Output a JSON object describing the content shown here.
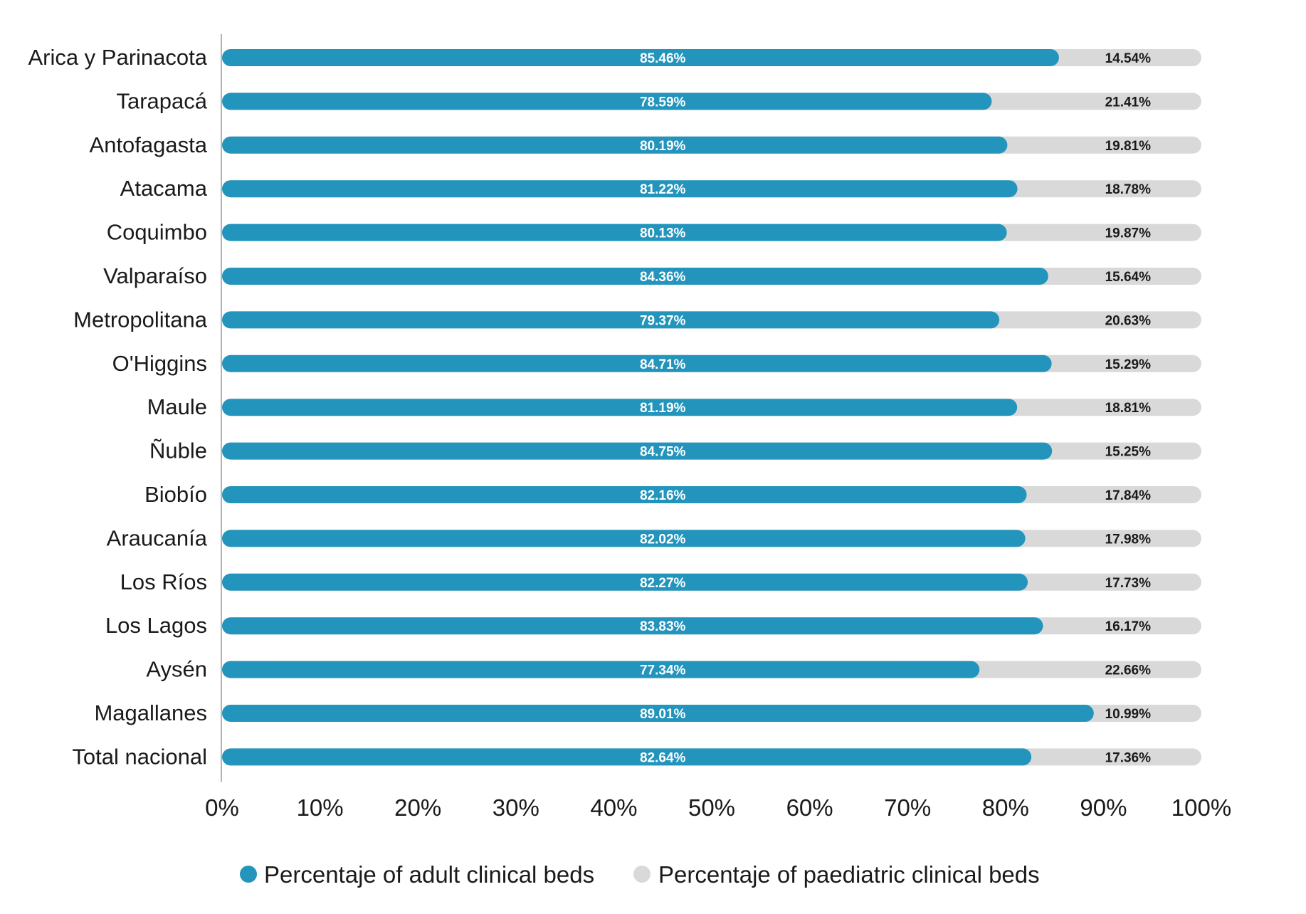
{
  "chart_data": {
    "type": "bar",
    "orientation": "horizontal",
    "stacked": true,
    "categories": [
      "Arica y Parinacota",
      "Tarapacá",
      "Antofagasta",
      "Atacama",
      "Coquimbo",
      "Valparaíso",
      "Metropolitana",
      "O'Higgins",
      "Maule",
      "Ñuble",
      "Biobío",
      "Araucanía",
      "Los Ríos",
      "Los Lagos",
      "Aysén",
      "Magallanes",
      "Total nacional"
    ],
    "series": [
      {
        "name": "Percentaje of adult clinical beds",
        "color": "#2394BC",
        "values": [
          85.46,
          78.59,
          80.19,
          81.22,
          80.13,
          84.36,
          79.37,
          84.71,
          81.19,
          84.75,
          82.16,
          82.02,
          82.27,
          83.83,
          77.34,
          89.01,
          82.64
        ],
        "labels": [
          "85.46%",
          "78.59%",
          "80.19%",
          "81.22%",
          "80.13%",
          "84.36%",
          "79.37%",
          "84.71%",
          "81.19%",
          "84.75%",
          "82.16%",
          "82.02%",
          "82.27%",
          "83.83%",
          "77.34%",
          "89.01%",
          "82.64%"
        ]
      },
      {
        "name": "Percentaje of paediatric clinical beds",
        "color": "#D9D9D9",
        "values": [
          14.54,
          21.41,
          19.81,
          18.78,
          19.87,
          15.64,
          20.63,
          15.29,
          18.81,
          15.25,
          17.84,
          17.98,
          17.73,
          16.17,
          22.66,
          10.99,
          17.36
        ],
        "labels": [
          "14.54%",
          "21.41%",
          "19.81%",
          "18.78%",
          "19.87%",
          "15.64%",
          "20.63%",
          "15.29%",
          "18.81%",
          "15.25%",
          "17.84%",
          "17.98%",
          "17.73%",
          "16.17%",
          "22.66%",
          "10.99%",
          "17.36%"
        ]
      }
    ],
    "x_ticks": [
      "0%",
      "10%",
      "20%",
      "30%",
      "40%",
      "50%",
      "60%",
      "70%",
      "80%",
      "90%",
      "100%"
    ],
    "xlim": [
      0,
      100
    ],
    "grid": false,
    "legend_position": "bottom"
  }
}
